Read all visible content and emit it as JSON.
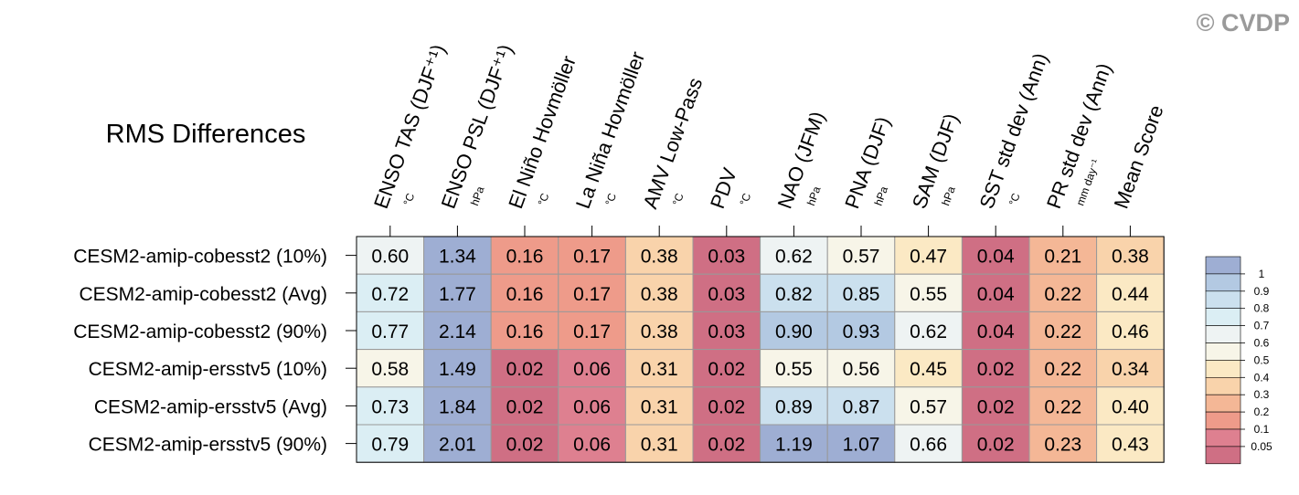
{
  "watermark": "© CVDP",
  "chart_data": {
    "type": "heatmap",
    "title": "RMS Differences",
    "columns": [
      {
        "label": "ENSO TAS (DJF⁺¹)",
        "unit": "°C"
      },
      {
        "label": "ENSO PSL (DJF⁺¹)",
        "unit": "hPa"
      },
      {
        "label": "El Niño Hovmöller",
        "unit": "°C"
      },
      {
        "label": "La Niña Hovmöller",
        "unit": "°C"
      },
      {
        "label": "AMV Low-Pass",
        "unit": "°C"
      },
      {
        "label": "PDV",
        "unit": "°C"
      },
      {
        "label": "NAO (JFM)",
        "unit": "hPa"
      },
      {
        "label": "PNA (DJF)",
        "unit": "hPa"
      },
      {
        "label": "SAM (DJF)",
        "unit": "hPa"
      },
      {
        "label": "SST std dev (Ann)",
        "unit": "°C"
      },
      {
        "label": "PR std dev (Ann)",
        "unit": "mm day⁻¹"
      },
      {
        "label": "Mean Score",
        "unit": ""
      }
    ],
    "rows": [
      {
        "label": "CESM2-amip-cobesst2 (10%)",
        "values": [
          "0.60",
          "1.34",
          "0.16",
          "0.17",
          "0.38",
          "0.03",
          "0.62",
          "0.57",
          "0.47",
          "0.04",
          "0.21",
          "0.38"
        ]
      },
      {
        "label": "CESM2-amip-cobesst2 (Avg)",
        "values": [
          "0.72",
          "1.77",
          "0.16",
          "0.17",
          "0.38",
          "0.03",
          "0.82",
          "0.85",
          "0.55",
          "0.04",
          "0.22",
          "0.44"
        ]
      },
      {
        "label": "CESM2-amip-cobesst2 (90%)",
        "values": [
          "0.77",
          "2.14",
          "0.16",
          "0.17",
          "0.38",
          "0.03",
          "0.90",
          "0.93",
          "0.62",
          "0.04",
          "0.22",
          "0.46"
        ]
      },
      {
        "label": "CESM2-amip-ersstv5 (10%)",
        "values": [
          "0.58",
          "1.49",
          "0.02",
          "0.06",
          "0.31",
          "0.02",
          "0.55",
          "0.56",
          "0.45",
          "0.02",
          "0.22",
          "0.34"
        ]
      },
      {
        "label": "CESM2-amip-ersstv5 (Avg)",
        "values": [
          "0.73",
          "1.84",
          "0.02",
          "0.06",
          "0.31",
          "0.02",
          "0.89",
          "0.87",
          "0.57",
          "0.02",
          "0.22",
          "0.40"
        ]
      },
      {
        "label": "CESM2-amip-ersstv5 (90%)",
        "values": [
          "0.79",
          "2.01",
          "0.02",
          "0.06",
          "0.31",
          "0.02",
          "1.19",
          "1.07",
          "0.66",
          "0.02",
          "0.23",
          "0.43"
        ]
      }
    ],
    "colorbar": {
      "levels": [
        "1",
        "0.9",
        "0.8",
        "0.7",
        "0.6",
        "0.5",
        "0.4",
        "0.3",
        "0.2",
        "0.1",
        "0.05"
      ],
      "colors": [
        "#9eaed3",
        "#b3c9e2",
        "#cbe0ee",
        "#dbeef4",
        "#eef3f3",
        "#f7f5e8",
        "#fbe9c4",
        "#f9d3ab",
        "#f4b796",
        "#ee9b8a",
        "#de8090",
        "#cf6f84"
      ],
      "placement": "right"
    }
  }
}
